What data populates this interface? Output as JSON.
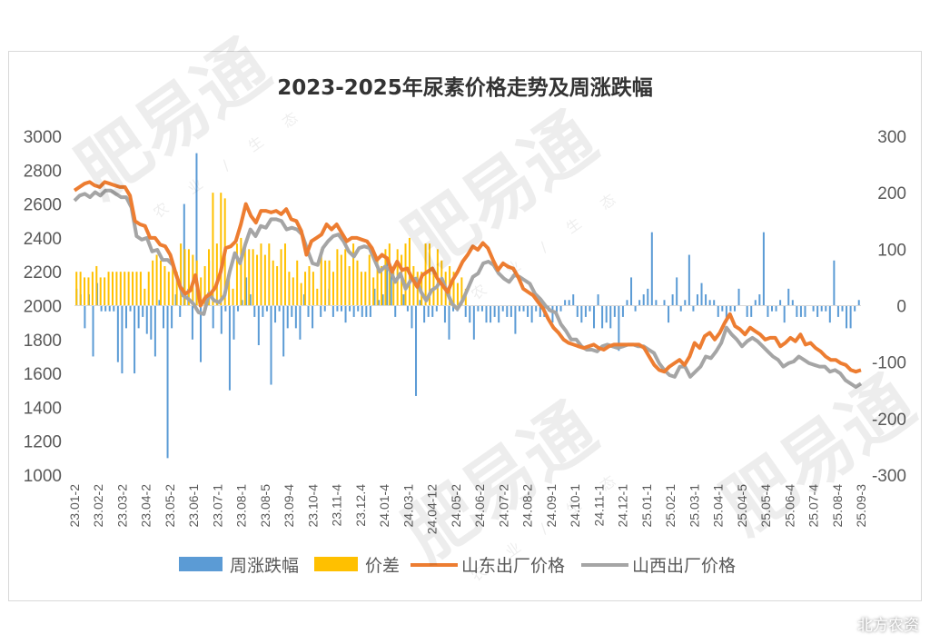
{
  "watermark": {
    "brand": "肥易通",
    "tagline": "农业/生态"
  },
  "source_credit": "北方农资",
  "chart_data": {
    "type": "combo",
    "title": "2023-2025年尿素价格走势及周涨跌幅",
    "x_tick_labels": [
      "23.01-2",
      "23.02-2",
      "23.03-2",
      "23.04-2",
      "23.05-2",
      "23.06-1",
      "23.07-1",
      "23.08-1",
      "23.08-5",
      "23.09-4",
      "23.10-4",
      "23.11-4",
      "23.12.4",
      "24.01-4",
      "24.03-1",
      "24.04-12",
      "24.05-2",
      "24.06-2",
      "24.07-2",
      "24.08-2",
      "24.09-1",
      "24.10-1",
      "24.11-1",
      "24.12-1",
      "25.01-1",
      "25.02-1",
      "25.03-1",
      "25.04-1",
      "25.04-5",
      "25.05-4",
      "25.06-4",
      "25.07-4",
      "25.08-4",
      "25.09-3"
    ],
    "y_left": {
      "min": 1000,
      "max": 3000,
      "step": 200
    },
    "y_right": {
      "min": -300,
      "max": 300,
      "step": 100
    },
    "grid": false,
    "legend_position": "bottom",
    "colors": {
      "weekly_change": "#5B9BD5",
      "spread": "#FFC000",
      "shandong": "#ED7D31",
      "shanxi": "#A5A5A5"
    },
    "series": [
      {
        "name": "周涨跌幅",
        "type": "bar",
        "axis": "right",
        "values": [
          30,
          20,
          -40,
          20,
          -90,
          40,
          -10,
          -10,
          -10,
          -10,
          -100,
          -120,
          -40,
          -10,
          -120,
          -40,
          -20,
          -50,
          -60,
          -90,
          10,
          -40,
          -270,
          -40,
          20,
          -20,
          180,
          30,
          -60,
          270,
          -100,
          -10,
          80,
          -40,
          10,
          -50,
          -10,
          -150,
          -60,
          -10,
          10,
          50,
          20,
          -20,
          -70,
          -20,
          -10,
          -140,
          -30,
          -10,
          -90,
          -40,
          -20,
          -40,
          -60,
          20,
          -20,
          -40,
          0,
          -20,
          -10,
          30,
          -20,
          -10,
          -10,
          -30,
          -10,
          -20,
          -10,
          -20,
          -20,
          -20,
          30,
          10,
          20,
          80,
          70,
          -20,
          0,
          20,
          -10,
          -40,
          -160,
          10,
          -30,
          -20,
          -20,
          -10,
          0,
          -30,
          -60,
          -10,
          -10,
          10,
          -20,
          -30,
          -60,
          -10,
          -10,
          -30,
          -30,
          -20,
          -30,
          -10,
          -20,
          -20,
          -50,
          -10,
          -10,
          -20,
          -30,
          -10,
          -20,
          -20,
          -10,
          -30,
          -20,
          -10,
          10,
          10,
          20,
          -20,
          -30,
          -20,
          -10,
          -40,
          20,
          -40,
          -30,
          -40,
          -20,
          -80,
          -20,
          10,
          50,
          -10,
          10,
          20,
          30,
          130,
          10,
          0,
          10,
          -30,
          20,
          50,
          -10,
          10,
          90,
          -10,
          20,
          40,
          20,
          10,
          10,
          -20,
          -10,
          -30,
          -10,
          -10,
          30,
          0,
          -20,
          -20,
          10,
          20,
          130,
          -20,
          -10,
          -10,
          10,
          -30,
          30,
          10,
          -20,
          -20,
          -20,
          0,
          -10,
          -20,
          -10,
          -10,
          -30,
          80,
          -20,
          -10,
          -40,
          -40,
          -10,
          10
        ]
      },
      {
        "name": "价差",
        "type": "bar",
        "axis": "right",
        "values": [
          60,
          60,
          50,
          50,
          60,
          70,
          50,
          50,
          60,
          60,
          60,
          60,
          60,
          60,
          60,
          60,
          60,
          30,
          60,
          80,
          90,
          80,
          70,
          60,
          80,
          60,
          110,
          100,
          100,
          90,
          80,
          50,
          70,
          100,
          200,
          110,
          200,
          190,
          50,
          30,
          110,
          120,
          110,
          100,
          100,
          90,
          110,
          90,
          110,
          80,
          70,
          100,
          110,
          60,
          50,
          80,
          40,
          60,
          70,
          60,
          30,
          100,
          80,
          80,
          60,
          100,
          90,
          100,
          70,
          110,
          80,
          60,
          60,
          90,
          50,
          80,
          70,
          100,
          110,
          60,
          100,
          90,
          110,
          120,
          70,
          60,
          60,
          110,
          110,
          60,
          100,
          80,
          60,
          70,
          60,
          40,
          50,
          30
        ]
      },
      {
        "name": "山东出厂价格",
        "type": "line",
        "axis": "left",
        "values": [
          2680,
          2700,
          2720,
          2730,
          2710,
          2700,
          2730,
          2720,
          2710,
          2700,
          2700,
          2650,
          2500,
          2480,
          2470,
          2400,
          2400,
          2360,
          2350,
          2300,
          2200,
          2110,
          2070,
          2090,
          2180,
          2000,
          2050,
          2070,
          2110,
          2200,
          2340,
          2350,
          2380,
          2480,
          2600,
          2530,
          2490,
          2560,
          2560,
          2550,
          2560,
          2540,
          2570,
          2510,
          2500,
          2440,
          2300,
          2380,
          2400,
          2420,
          2480,
          2450,
          2480,
          2430,
          2380,
          2400,
          2400,
          2390,
          2380,
          2340,
          2270,
          2300,
          2280,
          2200,
          2260,
          2210,
          2220,
          2160,
          2110,
          2180,
          2200,
          2220,
          2160,
          2120,
          2080,
          2150,
          2200,
          2260,
          2300,
          2350,
          2330,
          2370,
          2340,
          2270,
          2210,
          2250,
          2230,
          2220,
          2170,
          2100,
          2080,
          2060,
          2020,
          1980,
          1920,
          1870,
          1840,
          1800,
          1780,
          1770,
          1760,
          1750,
          1760,
          1770,
          1750,
          1740,
          1760,
          1770,
          1770,
          1770,
          1770,
          1770,
          1770,
          1750,
          1700,
          1650,
          1620,
          1610,
          1640,
          1660,
          1680,
          1650,
          1700,
          1780,
          1750,
          1820,
          1840,
          1800,
          1840,
          1900,
          1950,
          1880,
          1860,
          1830,
          1870,
          1850,
          1830,
          1800,
          1810,
          1810,
          1760,
          1780,
          1810,
          1790,
          1830,
          1770,
          1780,
          1750,
          1730,
          1700,
          1680,
          1680,
          1660,
          1650,
          1620,
          1610,
          1620
        ]
      },
      {
        "name": "山西出厂价格",
        "type": "line",
        "axis": "left",
        "values": [
          2620,
          2650,
          2660,
          2640,
          2670,
          2650,
          2680,
          2680,
          2660,
          2640,
          2640,
          2580,
          2410,
          2390,
          2400,
          2320,
          2330,
          2270,
          2270,
          2240,
          2150,
          2060,
          2040,
          2010,
          1960,
          1950,
          2070,
          2030,
          2020,
          2060,
          2200,
          2310,
          2250,
          2360,
          2450,
          2410,
          2470,
          2460,
          2510,
          2510,
          2500,
          2450,
          2460,
          2450,
          2420,
          2330,
          2250,
          2240,
          2340,
          2380,
          2410,
          2420,
          2380,
          2320,
          2290,
          2340,
          2350,
          2340,
          2270,
          2200,
          2230,
          2210,
          2140,
          2190,
          2100,
          2150,
          2160,
          2080,
          2030,
          2090,
          2110,
          2160,
          2080,
          2010,
          1980,
          2030,
          2100,
          2170,
          2190,
          2250,
          2260,
          2240,
          2190,
          2160,
          2140,
          2180,
          2170,
          2150,
          2130,
          2070,
          2040,
          2000,
          1970,
          1960,
          1890,
          1850,
          1800,
          1800,
          1760,
          1740,
          1740,
          1730,
          1760,
          1770,
          1760,
          1750,
          1760,
          1770,
          1770,
          1760,
          1760,
          1740,
          1720,
          1660,
          1620,
          1590,
          1580,
          1640,
          1640,
          1580,
          1610,
          1640,
          1700,
          1690,
          1730,
          1780,
          1870,
          1830,
          1800,
          1760,
          1790,
          1810,
          1790,
          1760,
          1730,
          1700,
          1680,
          1640,
          1660,
          1670,
          1700,
          1680,
          1660,
          1650,
          1640,
          1640,
          1610,
          1620,
          1600,
          1560,
          1540,
          1520,
          1540
        ]
      }
    ]
  }
}
